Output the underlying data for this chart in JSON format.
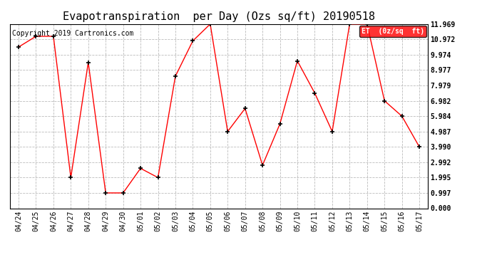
{
  "title": "Evapotranspiration  per Day (Ozs sq/ft) 20190518",
  "copyright": "Copyright 2019 Cartronics.com",
  "legend_label": "ET  (0z/sq  ft)",
  "x_labels": [
    "04/24",
    "04/25",
    "04/26",
    "04/27",
    "04/28",
    "04/29",
    "04/30",
    "05/01",
    "05/02",
    "05/03",
    "05/04",
    "05/05",
    "05/06",
    "05/07",
    "05/08",
    "05/09",
    "05/10",
    "05/11",
    "05/12",
    "05/13",
    "05/14",
    "05/15",
    "05/16",
    "05/17"
  ],
  "y_values": [
    10.474,
    11.171,
    11.171,
    1.995,
    9.474,
    0.997,
    0.997,
    2.593,
    1.995,
    8.577,
    10.872,
    11.969,
    4.987,
    6.483,
    2.793,
    5.484,
    9.574,
    7.48,
    4.987,
    11.969,
    11.969,
    6.982,
    5.984,
    3.99
  ],
  "ylim": [
    0.0,
    11.969
  ],
  "yticks": [
    0.0,
    0.997,
    1.995,
    2.992,
    3.99,
    4.987,
    5.984,
    6.982,
    7.979,
    8.977,
    9.974,
    10.972,
    11.969
  ],
  "line_color": "red",
  "marker": "+",
  "marker_color": "black",
  "background_color": "white",
  "grid_color": "#bbbbbb",
  "title_fontsize": 11,
  "copyright_fontsize": 7,
  "legend_fontsize": 7,
  "tick_fontsize": 7,
  "legend_bg": "red",
  "legend_text_color": "white"
}
